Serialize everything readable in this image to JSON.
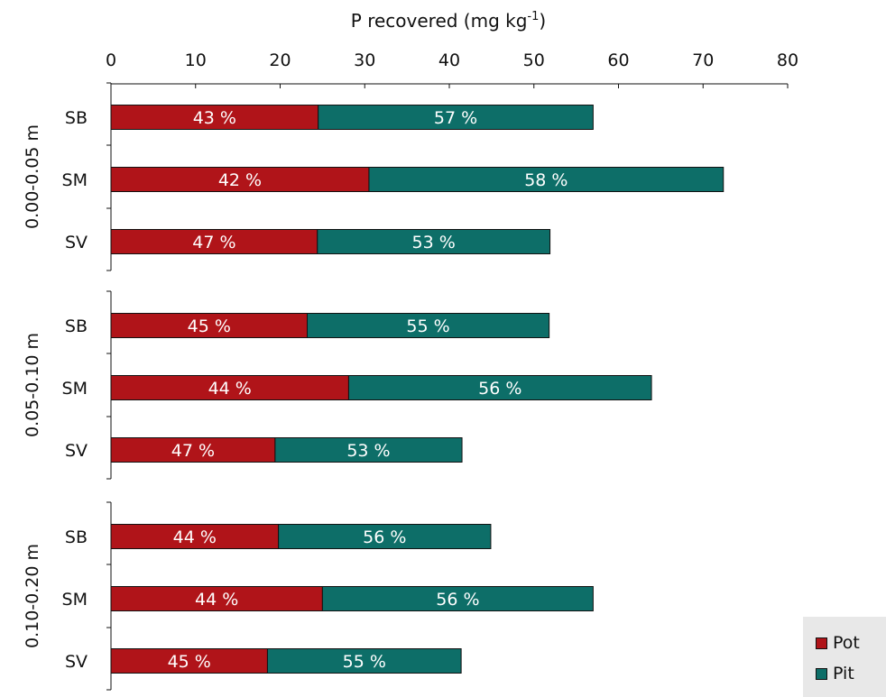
{
  "chart_data": {
    "type": "bar",
    "orientation": "horizontal",
    "stacked": true,
    "title": "",
    "xlabel": "P recovered (mg kg-1)",
    "xlabel_parts": {
      "main": "P recovered (mg kg",
      "sup": "-1",
      "end": ")"
    },
    "xlim": [
      0,
      80
    ],
    "xticks": [
      "0",
      "10",
      "20",
      "30",
      "40",
      "50",
      "60",
      "70",
      "80"
    ],
    "grid": false,
    "legend_position": "bottom-right",
    "groups": [
      {
        "label": "0.00-0.05 m",
        "categories": [
          "SB",
          "SM",
          "SV"
        ]
      },
      {
        "label": "0.05-0.10 m",
        "categories": [
          "SB",
          "SM",
          "SV"
        ]
      },
      {
        "label": "0.10-0.20 m",
        "categories": [
          "SB",
          "SM",
          "SV"
        ]
      }
    ],
    "series": [
      {
        "name": "Pot",
        "color": "#b01419",
        "values": [
          24.5,
          30.5,
          24.4,
          23.2,
          28.1,
          19.4,
          19.8,
          25.0,
          18.5
        ],
        "labels": [
          "43 %",
          "42 %",
          "47 %",
          "45 %",
          "44 %",
          "47 %",
          "44 %",
          "44 %",
          "45 %"
        ]
      },
      {
        "name": "Pit",
        "color": "#0d6e68",
        "values": [
          32.5,
          41.9,
          27.5,
          28.6,
          35.8,
          22.1,
          25.1,
          32.0,
          22.9
        ],
        "labels": [
          "57 %",
          "58 %",
          "53 %",
          "55 %",
          "56 %",
          "53 %",
          "56 %",
          "56 %",
          "55 %"
        ]
      }
    ]
  }
}
